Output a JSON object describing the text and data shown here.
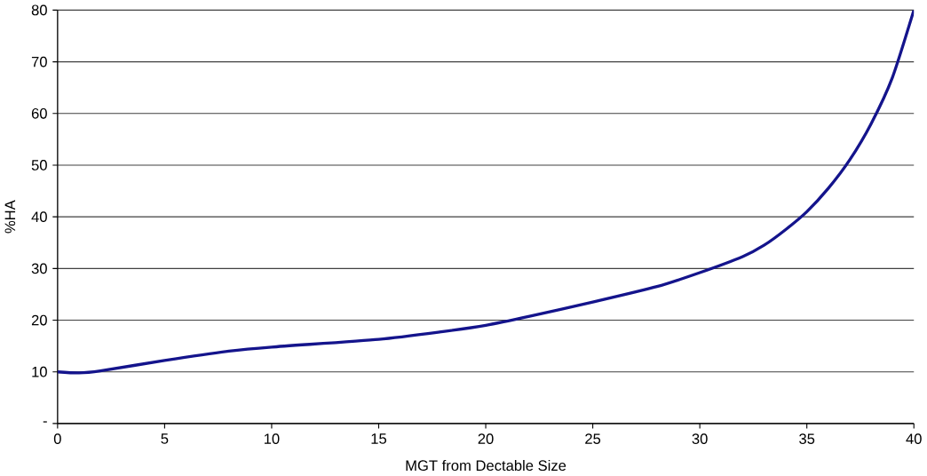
{
  "chart_data": {
    "type": "line",
    "xlabel": "MGT from Dectable Size",
    "ylabel": "%HA",
    "x": [
      0,
      1,
      2,
      5,
      8,
      10,
      15,
      18,
      20,
      22,
      25,
      28,
      30,
      32,
      33,
      34,
      35,
      36,
      37,
      38,
      39,
      40
    ],
    "series": [
      {
        "color": "#14148c",
        "values": [
          10,
          9.8,
          10.2,
          12.2,
          14,
          14.8,
          16.3,
          17.8,
          19,
          20.7,
          23.5,
          26.5,
          29.2,
          32.3,
          34.5,
          37.5,
          41,
          45.5,
          51,
          58,
          67,
          80
        ]
      }
    ],
    "xlim": [
      0,
      40
    ],
    "ylim": [
      0,
      80
    ],
    "xticks": [
      0,
      5,
      10,
      15,
      20,
      25,
      30,
      35,
      40
    ],
    "yticks": [
      {
        "value": 0,
        "label": "-"
      },
      10,
      20,
      30,
      40,
      50,
      60,
      70,
      80
    ],
    "grid": "y",
    "marker": "none",
    "line_style": "solid"
  }
}
